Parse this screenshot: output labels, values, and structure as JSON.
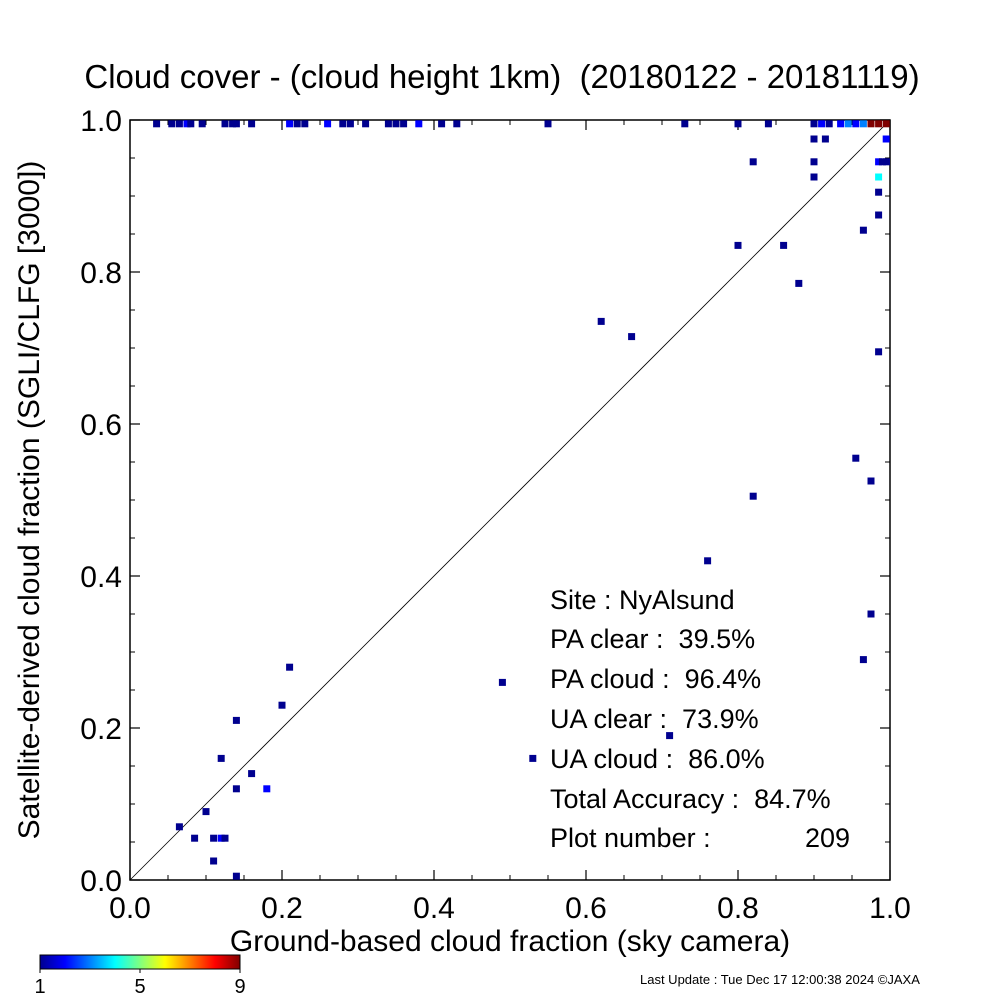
{
  "chart_data": {
    "type": "scatter",
    "title": "Cloud cover - (cloud height 1km)  (20180122 - 20181119)",
    "xlabel": "Ground-based cloud fraction (sky camera)",
    "ylabel": "Satellite-derived cloud fraction (SGLI/CLFG [3000])",
    "xlim": [
      0.0,
      1.0
    ],
    "ylim": [
      0.0,
      1.0
    ],
    "xticks": [
      "0.0",
      "0.2",
      "0.4",
      "0.6",
      "0.8",
      "1.0"
    ],
    "yticks": [
      "0.0",
      "0.2",
      "0.4",
      "0.6",
      "0.8",
      "1.0"
    ],
    "reference_line": "1:1 diagonal",
    "colorbar": {
      "min": 1,
      "max": 9,
      "tick_labels": [
        "1",
        "5",
        "9"
      ]
    },
    "stats": {
      "site": "Site : NyAlsund",
      "pa_clear": "PA clear :  39.5%",
      "pa_cloud": "PA cloud :  96.4%",
      "ua_clear": "UA clear :  73.9%",
      "ua_cloud": "UA cloud :  86.0%",
      "total_accuracy": "Total Accuracy :  84.7%",
      "plot_number_label": "Plot number :",
      "plot_number_value": "209"
    },
    "points": [
      {
        "x": 0.035,
        "y": 0.995,
        "c": 1
      },
      {
        "x": 0.055,
        "y": 0.995,
        "c": 1
      },
      {
        "x": 0.065,
        "y": 0.995,
        "c": 1
      },
      {
        "x": 0.075,
        "y": 0.995,
        "c": 2
      },
      {
        "x": 0.08,
        "y": 0.995,
        "c": 1
      },
      {
        "x": 0.095,
        "y": 0.995,
        "c": 1
      },
      {
        "x": 0.125,
        "y": 0.995,
        "c": 1
      },
      {
        "x": 0.135,
        "y": 0.995,
        "c": 1
      },
      {
        "x": 0.14,
        "y": 0.995,
        "c": 1
      },
      {
        "x": 0.16,
        "y": 0.995,
        "c": 1
      },
      {
        "x": 0.21,
        "y": 0.995,
        "c": 2
      },
      {
        "x": 0.22,
        "y": 0.995,
        "c": 1
      },
      {
        "x": 0.23,
        "y": 0.995,
        "c": 1
      },
      {
        "x": 0.26,
        "y": 0.995,
        "c": 2
      },
      {
        "x": 0.28,
        "y": 0.995,
        "c": 1
      },
      {
        "x": 0.29,
        "y": 0.995,
        "c": 1
      },
      {
        "x": 0.31,
        "y": 0.995,
        "c": 1
      },
      {
        "x": 0.34,
        "y": 0.995,
        "c": 1
      },
      {
        "x": 0.35,
        "y": 0.995,
        "c": 1
      },
      {
        "x": 0.36,
        "y": 0.995,
        "c": 1
      },
      {
        "x": 0.38,
        "y": 0.995,
        "c": 2
      },
      {
        "x": 0.41,
        "y": 0.995,
        "c": 1
      },
      {
        "x": 0.43,
        "y": 0.995,
        "c": 1
      },
      {
        "x": 0.55,
        "y": 0.995,
        "c": 1
      },
      {
        "x": 0.73,
        "y": 0.995,
        "c": 1
      },
      {
        "x": 0.8,
        "y": 0.995,
        "c": 1
      },
      {
        "x": 0.84,
        "y": 0.995,
        "c": 1
      },
      {
        "x": 0.9,
        "y": 0.995,
        "c": 1
      },
      {
        "x": 0.91,
        "y": 0.995,
        "c": 2
      },
      {
        "x": 0.92,
        "y": 0.995,
        "c": 1
      },
      {
        "x": 0.935,
        "y": 0.995,
        "c": 2
      },
      {
        "x": 0.945,
        "y": 0.995,
        "c": 3
      },
      {
        "x": 0.955,
        "y": 0.995,
        "c": 2
      },
      {
        "x": 0.965,
        "y": 0.995,
        "c": 3
      },
      {
        "x": 0.975,
        "y": 0.995,
        "c": 9
      },
      {
        "x": 0.985,
        "y": 0.995,
        "c": 9
      },
      {
        "x": 0.995,
        "y": 0.995,
        "c": 9
      },
      {
        "x": 0.995,
        "y": 0.975,
        "c": 2
      },
      {
        "x": 0.9,
        "y": 0.975,
        "c": 1
      },
      {
        "x": 0.915,
        "y": 0.975,
        "c": 1
      },
      {
        "x": 0.82,
        "y": 0.945,
        "c": 1
      },
      {
        "x": 0.9,
        "y": 0.945,
        "c": 1
      },
      {
        "x": 0.985,
        "y": 0.945,
        "c": 2
      },
      {
        "x": 0.99,
        "y": 0.945,
        "c": 1
      },
      {
        "x": 0.998,
        "y": 0.945,
        "c": 1
      },
      {
        "x": 0.985,
        "y": 0.925,
        "c": 4
      },
      {
        "x": 0.9,
        "y": 0.925,
        "c": 1
      },
      {
        "x": 0.985,
        "y": 0.905,
        "c": 1
      },
      {
        "x": 0.985,
        "y": 0.875,
        "c": 1
      },
      {
        "x": 0.965,
        "y": 0.855,
        "c": 1
      },
      {
        "x": 0.8,
        "y": 0.835,
        "c": 1
      },
      {
        "x": 0.86,
        "y": 0.835,
        "c": 1
      },
      {
        "x": 0.88,
        "y": 0.785,
        "c": 1
      },
      {
        "x": 0.62,
        "y": 0.735,
        "c": 1
      },
      {
        "x": 0.66,
        "y": 0.715,
        "c": 1
      },
      {
        "x": 0.985,
        "y": 0.695,
        "c": 1
      },
      {
        "x": 0.955,
        "y": 0.555,
        "c": 1
      },
      {
        "x": 0.975,
        "y": 0.525,
        "c": 1
      },
      {
        "x": 0.82,
        "y": 0.505,
        "c": 1
      },
      {
        "x": 0.76,
        "y": 0.42,
        "c": 1
      },
      {
        "x": 0.975,
        "y": 0.35,
        "c": 1
      },
      {
        "x": 0.965,
        "y": 0.29,
        "c": 1
      },
      {
        "x": 0.21,
        "y": 0.28,
        "c": 1
      },
      {
        "x": 0.49,
        "y": 0.26,
        "c": 1
      },
      {
        "x": 0.2,
        "y": 0.23,
        "c": 1
      },
      {
        "x": 0.14,
        "y": 0.21,
        "c": 1
      },
      {
        "x": 0.71,
        "y": 0.19,
        "c": 1
      },
      {
        "x": 0.12,
        "y": 0.16,
        "c": 1
      },
      {
        "x": 0.53,
        "y": 0.16,
        "c": 1
      },
      {
        "x": 0.16,
        "y": 0.14,
        "c": 1
      },
      {
        "x": 0.14,
        "y": 0.12,
        "c": 1
      },
      {
        "x": 0.18,
        "y": 0.12,
        "c": 2
      },
      {
        "x": 0.1,
        "y": 0.09,
        "c": 1
      },
      {
        "x": 0.065,
        "y": 0.07,
        "c": 1
      },
      {
        "x": 0.085,
        "y": 0.055,
        "c": 1
      },
      {
        "x": 0.11,
        "y": 0.055,
        "c": 1
      },
      {
        "x": 0.12,
        "y": 0.055,
        "c": 2
      },
      {
        "x": 0.125,
        "y": 0.055,
        "c": 1
      },
      {
        "x": 0.11,
        "y": 0.025,
        "c": 1
      },
      {
        "x": 0.14,
        "y": 0.005,
        "c": 1
      }
    ]
  },
  "footer": {
    "last_update": "Last Update : Tue Dec 17 12:00:38 2024  ©JAXA"
  }
}
